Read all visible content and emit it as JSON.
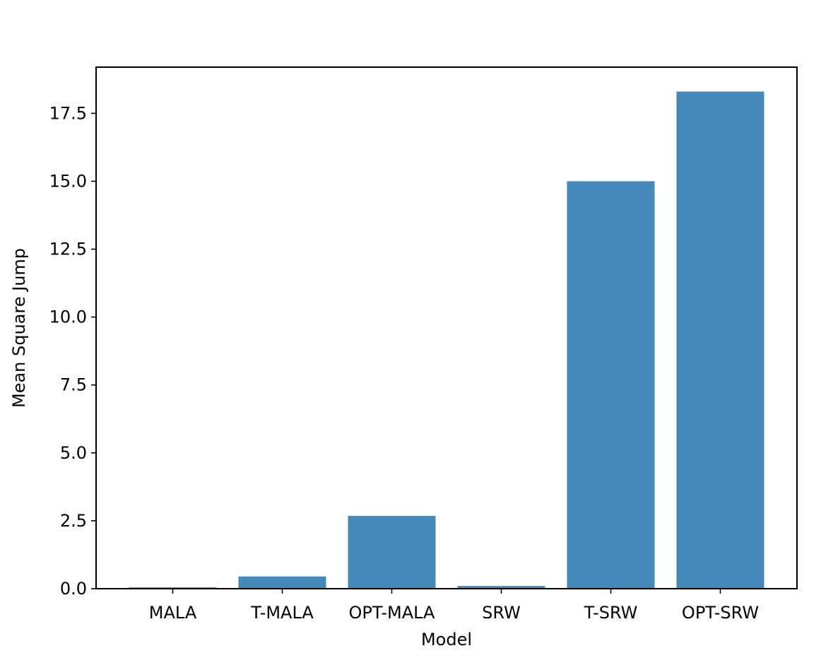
{
  "chart_data": {
    "type": "bar",
    "title": "",
    "xlabel": "Model",
    "ylabel": "Mean Square Jump",
    "categories": [
      "MALA",
      "T-MALA",
      "OPT-MALA",
      "SRW",
      "T-SRW",
      "OPT-SRW"
    ],
    "values": [
      0.05,
      0.45,
      2.68,
      0.1,
      15.0,
      18.3
    ],
    "ylim": [
      0,
      19.2
    ],
    "yticks": [
      0.0,
      2.5,
      5.0,
      7.5,
      10.0,
      12.5,
      15.0,
      17.5
    ],
    "ytick_labels": [
      "0.0",
      "2.5",
      "5.0",
      "7.5",
      "10.0",
      "12.5",
      "15.0",
      "17.5"
    ],
    "bar_color": "#4589bb",
    "grid": false,
    "legend": "none"
  }
}
